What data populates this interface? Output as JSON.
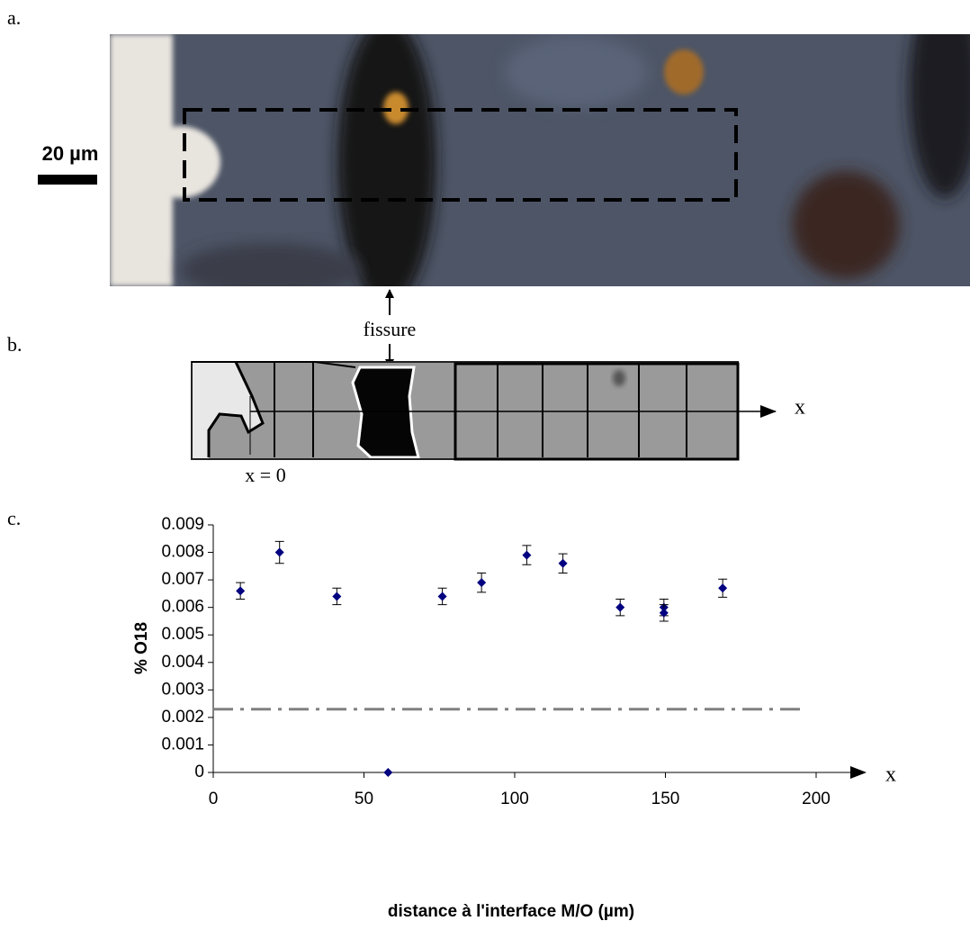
{
  "figure_a": {
    "label": "a.",
    "scale_bar": "20 µm",
    "arrow_label": "fissure"
  },
  "figure_b": {
    "label": "b.",
    "axis_label": "x",
    "origin_label": "x = 0"
  },
  "figure_c": {
    "label": "c."
  },
  "chart_data": {
    "type": "scatter",
    "x_label": "distance à l'interface M/O (µm)",
    "y_label": "% O18",
    "axis_arrow_label": "x",
    "x": [
      9,
      22,
      41,
      58,
      76,
      89,
      104,
      116,
      135,
      149.5,
      149.5,
      169
    ],
    "series": [
      {
        "color": "#000080",
        "values": [
          0.0066,
          0.008,
          0.0064,
          0,
          0.0064,
          0.0069,
          0.0079,
          0.0076,
          0.006,
          0.006,
          0.0058,
          0.0067
        ],
        "errors": [
          0.0003,
          0.0004,
          0.0003,
          null,
          0.0003,
          0.00035,
          0.00035,
          0.00035,
          0.0003,
          0.0003,
          0.0003,
          0.00033
        ]
      }
    ],
    "reference_line": {
      "y": 0.0023,
      "x": [
        0,
        196
      ],
      "color": "#808080"
    },
    "xlim": [
      0,
      200
    ],
    "ylim": [
      0,
      0.009
    ],
    "xticks": [
      0,
      50,
      100,
      150,
      200
    ],
    "yticks": [
      0,
      0.001,
      0.002,
      0.003,
      0.004,
      0.005,
      0.006,
      0.007,
      0.008,
      0.009
    ]
  }
}
